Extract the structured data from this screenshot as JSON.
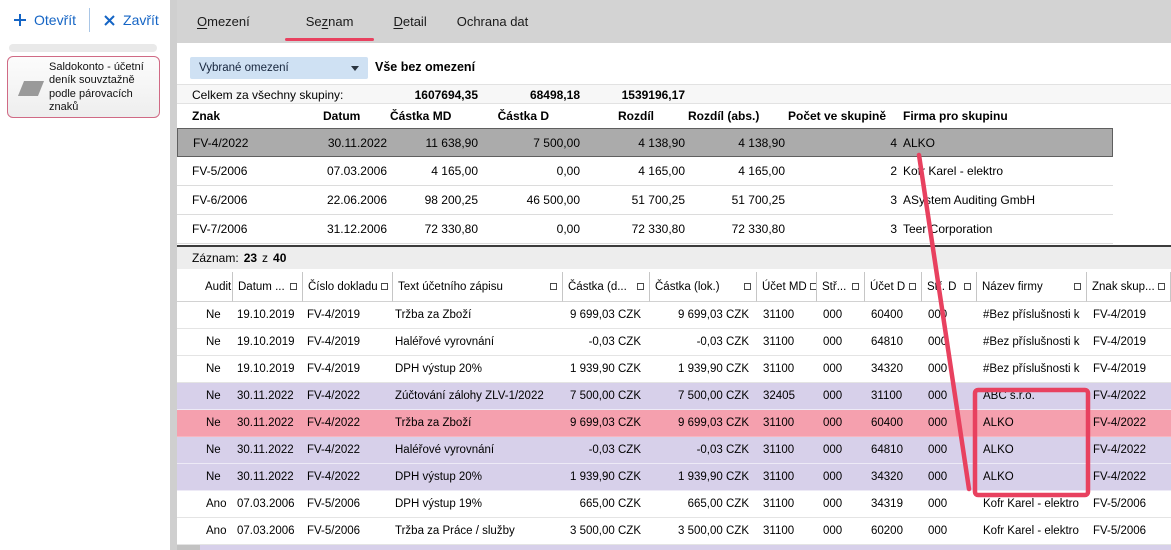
{
  "toolbar": {
    "open_label": "Otevřít",
    "close_label": "Zavřít"
  },
  "sidebar": {
    "item_title": "Saldokonto - účetní deník souvztažně podle párovacích znaků"
  },
  "tabs": [
    {
      "pre": "",
      "key": "O",
      "post": "mezení",
      "active": false
    },
    {
      "pre": "Se",
      "key": "z",
      "post": "nam",
      "active": true
    },
    {
      "pre": "",
      "key": "D",
      "post": "etail",
      "active": false
    },
    {
      "pre": "",
      "key": "",
      "post": "Ochrana dat",
      "active": false
    }
  ],
  "filter": {
    "dropdown_label": "Vybrané omezení",
    "selection_text": "Vše bez omezení"
  },
  "totals": {
    "label": "Celkem za všechny skupiny:",
    "amount_md": "1607694,35",
    "amount_d": "68498,18",
    "difference": "1539196,17"
  },
  "groups_table": {
    "columns": [
      "Znak",
      "Datum",
      "Částka MD",
      "Částka D",
      "Rozdíl",
      "Rozdíl (abs.)",
      "Počet ve skupině",
      "Firma pro skupinu"
    ],
    "rows": [
      {
        "selected": true,
        "cells": [
          "FV-4/2022",
          "30.11.2022",
          "11 638,90",
          "7 500,00",
          "4 138,90",
          "4 138,90",
          "4",
          "ALKO"
        ]
      },
      {
        "selected": false,
        "cells": [
          "FV-5/2006",
          "07.03.2006",
          "4 165,00",
          "0,00",
          "4 165,00",
          "4 165,00",
          "2",
          "Kofr Karel - elektro"
        ]
      },
      {
        "selected": false,
        "cells": [
          "FV-6/2006",
          "22.06.2006",
          "98 200,25",
          "46 500,00",
          "51 700,25",
          "51 700,25",
          "3",
          "ASystem Auditing GmbH"
        ]
      },
      {
        "selected": false,
        "cells": [
          "FV-7/2006",
          "31.12.2006",
          "72 330,80",
          "0,00",
          "72 330,80",
          "72 330,80",
          "3",
          "Teer Corporation"
        ]
      }
    ]
  },
  "record_status": {
    "label": "Záznam:",
    "current": "23",
    "separator": "z",
    "total": "40"
  },
  "entries_table": {
    "columns": [
      {
        "label": "",
        "box": false
      },
      {
        "label": "Audit",
        "box": false
      },
      {
        "label": "Datum ...",
        "box": true
      },
      {
        "label": "Číslo dokladu",
        "box": true
      },
      {
        "label": "Text účetního zápisu",
        "box": true
      },
      {
        "label": "Částka (d...",
        "box": true
      },
      {
        "label": "Částka (lok.)",
        "box": true
      },
      {
        "label": "Účet MD",
        "box": true
      },
      {
        "label": "Stř...",
        "box": true
      },
      {
        "label": "Účet D",
        "box": true
      },
      {
        "label": "Stř. D",
        "box": true
      },
      {
        "label": "Název firmy",
        "box": true
      },
      {
        "label": "Znak skup...",
        "box": true
      }
    ],
    "rows": [
      {
        "highlight": "none",
        "cells": [
          "",
          "Ne",
          "19.10.2019",
          "FV-4/2019",
          "Tržba za Zboží",
          "9 699,03 CZK",
          "9 699,03 CZK",
          "31100",
          "000",
          "60400",
          "000",
          "#Bez příslušnosti k",
          "FV-4/2019"
        ]
      },
      {
        "highlight": "none",
        "cells": [
          "",
          "Ne",
          "19.10.2019",
          "FV-4/2019",
          "Haléřové vyrovnání",
          "-0,03 CZK",
          "-0,03 CZK",
          "31100",
          "000",
          "64810",
          "000",
          "#Bez příslušnosti k",
          "FV-4/2019"
        ]
      },
      {
        "highlight": "none",
        "cells": [
          "",
          "Ne",
          "19.10.2019",
          "FV-4/2019",
          "DPH výstup 20%",
          "1 939,90 CZK",
          "1 939,90 CZK",
          "31100",
          "000",
          "34320",
          "000",
          "#Bez příslušnosti k",
          "FV-4/2019"
        ]
      },
      {
        "highlight": "purple",
        "cells": [
          "",
          "Ne",
          "30.11.2022",
          "FV-4/2022",
          "Zúčtování zálohy ZLV-1/2022",
          "7 500,00 CZK",
          "7 500,00 CZK",
          "32405",
          "000",
          "31100",
          "000",
          "ABC s.r.o.",
          "FV-4/2022"
        ]
      },
      {
        "highlight": "pink",
        "cells": [
          "",
          "Ne",
          "30.11.2022",
          "FV-4/2022",
          "Tržba za Zboží",
          "9 699,03 CZK",
          "9 699,03 CZK",
          "31100",
          "000",
          "60400",
          "000",
          "ALKO",
          "FV-4/2022"
        ]
      },
      {
        "highlight": "purple",
        "cells": [
          "",
          "Ne",
          "30.11.2022",
          "FV-4/2022",
          "Haléřové vyrovnání",
          "-0,03 CZK",
          "-0,03 CZK",
          "31100",
          "000",
          "64810",
          "000",
          "ALKO",
          "FV-4/2022"
        ]
      },
      {
        "highlight": "purple",
        "cells": [
          "",
          "Ne",
          "30.11.2022",
          "FV-4/2022",
          "DPH výstup 20%",
          "1 939,90 CZK",
          "1 939,90 CZK",
          "31100",
          "000",
          "34320",
          "000",
          "ALKO",
          "FV-4/2022"
        ]
      },
      {
        "highlight": "none",
        "cells": [
          "",
          "Ano",
          "07.03.2006",
          "FV-5/2006",
          "DPH výstup 19%",
          "665,00 CZK",
          "665,00 CZK",
          "31100",
          "000",
          "34319",
          "000",
          "Kofr Karel - elektro",
          "FV-5/2006"
        ]
      },
      {
        "highlight": "none",
        "cells": [
          "",
          "Ano",
          "07.03.2006",
          "FV-5/2006",
          "Tržba za Práce / služby",
          "3 500,00 CZK",
          "3 500,00 CZK",
          "31100",
          "000",
          "60200",
          "000",
          "Kofr Karel - elektro",
          "FV-5/2006"
        ]
      }
    ],
    "partial_row_highlight": "purple"
  },
  "colors": {
    "accent_red": "#e8415f",
    "link_blue": "#1565c5",
    "row_purple": "#d7d0ea",
    "row_pink": "#f5a0ae",
    "selected_gray": "#ababab",
    "dropdown_blue": "#cfe1f3",
    "tabbar_gray": "#d3d3d3"
  }
}
